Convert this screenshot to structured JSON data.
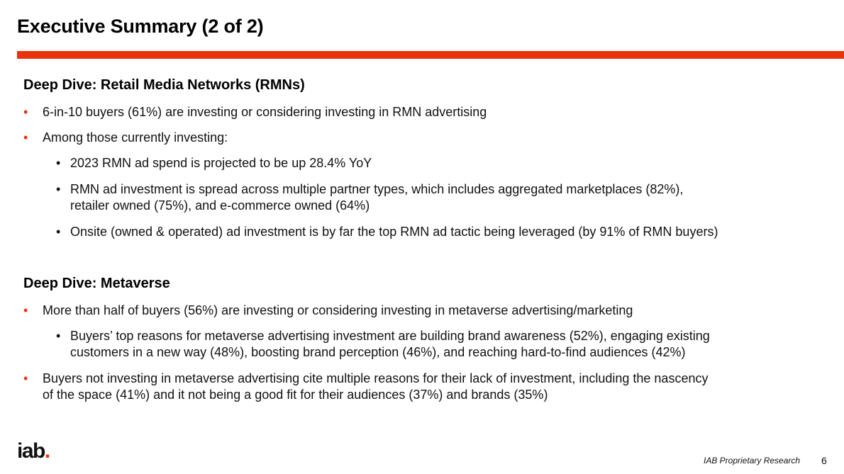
{
  "title": "Executive Summary (2 of 2)",
  "colors": {
    "accent": "#e8340c"
  },
  "rmn": {
    "heading": "Deep Dive: Retail Media Networks (RMNs)",
    "bullet1": "6-in-10 buyers (61%) are investing or considering investing in RMN advertising",
    "bullet2": "Among those currently investing:",
    "sub1": "2023 RMN ad spend is projected to be up 28.4% YoY",
    "sub2_line1": "RMN ad investment is spread across multiple partner types, which includes aggregated marketplaces (82%),",
    "sub2_line2": "retailer owned (75%), and e-commerce owned (64%)",
    "sub3": "Onsite (owned & operated) ad investment is by far the top RMN ad tactic being leveraged (by 91% of RMN buyers)"
  },
  "metaverse": {
    "heading": "Deep Dive: Metaverse",
    "bullet1": "More than half of buyers (56%) are investing or considering investing in metaverse advertising/marketing",
    "sub1_line1": "Buyers’ top reasons for metaverse advertising investment are building brand awareness (52%), engaging existing",
    "sub1_line2": "customers in a new way (48%), boosting brand perception (46%), and reaching hard-to-find audiences (42%)",
    "bullet2_line1": "Buyers not investing in metaverse advertising cite multiple reasons for their lack of investment, including the nascency",
    "bullet2_line2": "of the space (41%) and it not being a good fit for their audiences (37%) and brands (35%)"
  },
  "footer": {
    "logo_text": "iab",
    "logo_dot": ".",
    "label": "IAB Proprietary Research",
    "page": "6"
  },
  "markers": {
    "bullet": "•"
  }
}
